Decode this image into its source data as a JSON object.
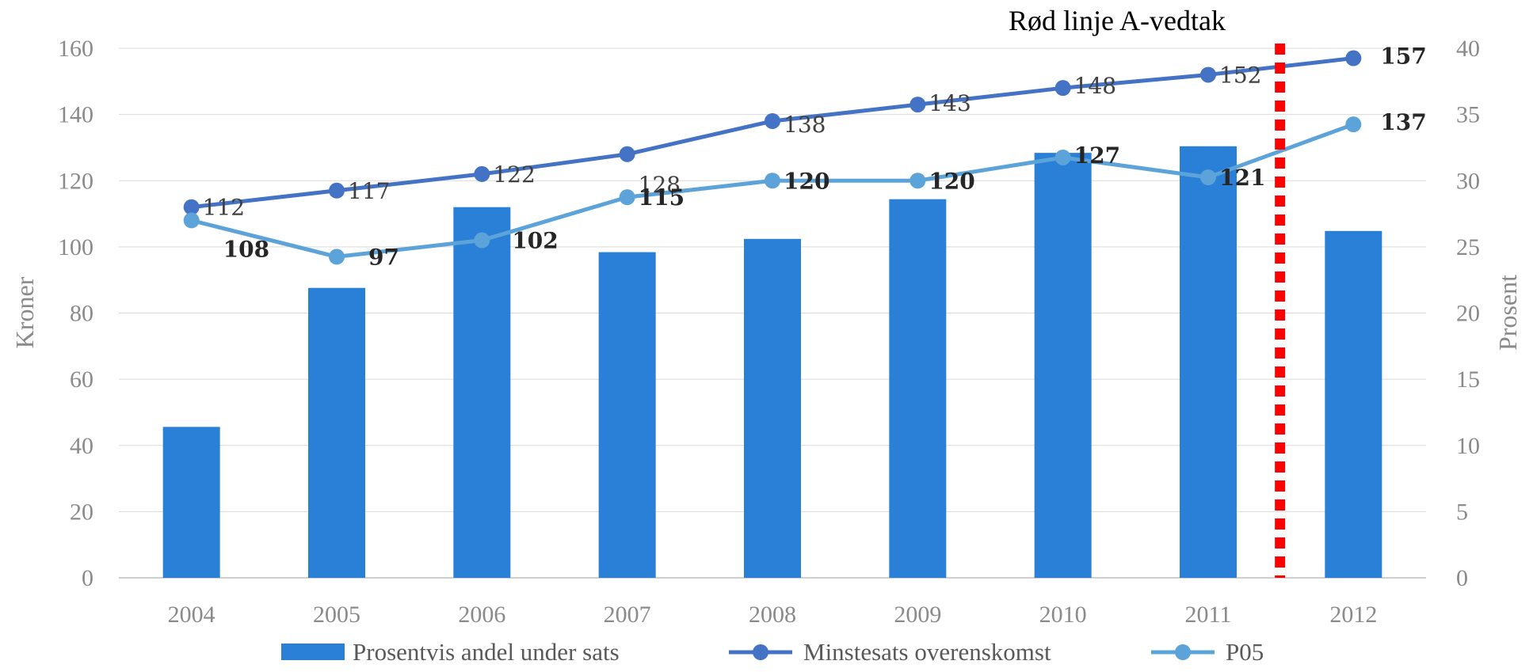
{
  "chart_data": {
    "type": "bar",
    "categories": [
      "2004",
      "2005",
      "2006",
      "2007",
      "2008",
      "2009",
      "2010",
      "2011",
      "2012"
    ],
    "series": [
      {
        "name": "Prosentvis andel under sats",
        "type": "bar",
        "axis": "right",
        "color": "#2a7fd6",
        "values": [
          11.4,
          21.9,
          28.0,
          24.6,
          25.6,
          28.6,
          32.1,
          32.6,
          26.2
        ]
      },
      {
        "name": "Minstesats overenskomst",
        "type": "line",
        "axis": "left",
        "color": "#4472c4",
        "values": [
          112,
          117,
          122,
          128,
          138,
          143,
          148,
          152,
          157
        ],
        "labels": [
          "112",
          "117",
          "122",
          "128",
          "138",
          "143",
          "148",
          "152",
          "157"
        ]
      },
      {
        "name": "P05",
        "type": "line",
        "axis": "left",
        "color": "#5ba3d9",
        "values": [
          108,
          97,
          102,
          115,
          120,
          120,
          127,
          121,
          137
        ],
        "labels": [
          "108",
          "97",
          "102",
          "115",
          "120",
          "120",
          "127",
          "121",
          "137"
        ]
      }
    ],
    "y_left": {
      "label": "Kroner",
      "min": 0,
      "max": 160,
      "ticks": [
        "0",
        "20",
        "40",
        "60",
        "80",
        "100",
        "120",
        "140",
        "160"
      ]
    },
    "y_right": {
      "label": "Prosent",
      "min": 0,
      "max": 40,
      "ticks": [
        "0",
        "5",
        "10",
        "15",
        "20",
        "25",
        "30",
        "35",
        "40"
      ]
    },
    "grid": true,
    "legend_position": "bottom",
    "annotation": {
      "text": "Rød linje A-vedtak",
      "between_categories": [
        "2011",
        "2012"
      ],
      "color": "#ff0000"
    }
  }
}
